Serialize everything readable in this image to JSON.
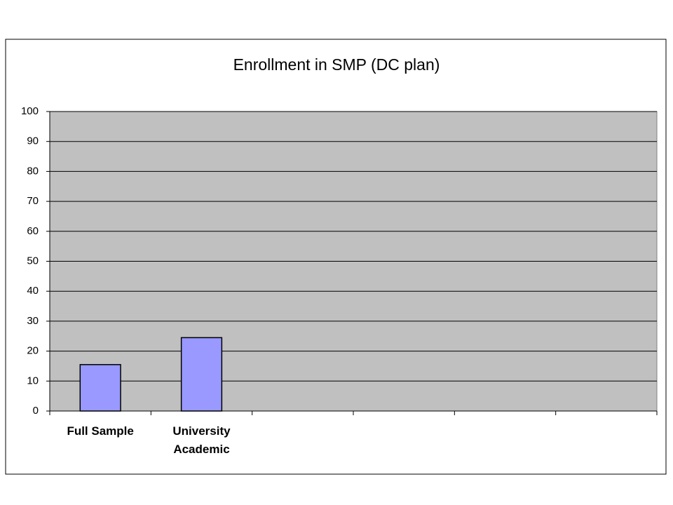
{
  "chart_data": {
    "type": "bar",
    "title": "Enrollment in SMP (DC plan)",
    "categories": [
      "Full Sample",
      "University Academic",
      null,
      null,
      null,
      null
    ],
    "values": [
      15.5,
      24.5,
      null,
      null,
      null,
      null
    ],
    "color": "#9999ff",
    "ylim": [
      0,
      100
    ],
    "yticks": [
      0,
      10,
      20,
      30,
      40,
      50,
      60,
      70,
      80,
      90,
      100
    ],
    "grid": true
  }
}
